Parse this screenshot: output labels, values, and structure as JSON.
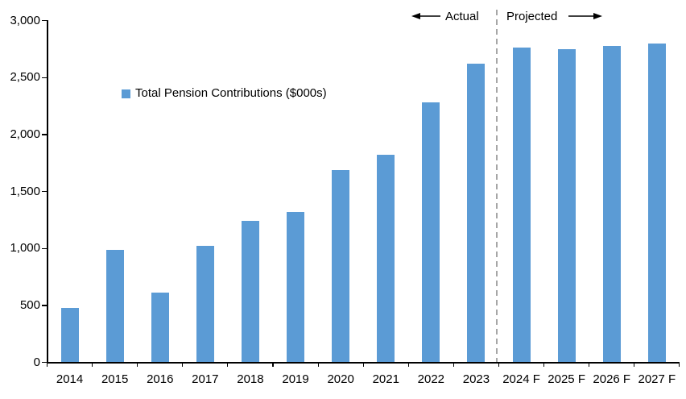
{
  "chart_data": {
    "type": "bar",
    "title": "",
    "legend_label": "Total Pension Contributions ($000s)",
    "categories": [
      "2014",
      "2015",
      "2016",
      "2017",
      "2018",
      "2019",
      "2020",
      "2021",
      "2022",
      "2023",
      "2024 F",
      "2025 F",
      "2026 F",
      "2027 F"
    ],
    "values": [
      475,
      990,
      610,
      1020,
      1240,
      1320,
      1690,
      1820,
      2280,
      2620,
      2760,
      2750,
      2780,
      2800
    ],
    "ylim": [
      0,
      3000
    ],
    "y_ticks": [
      0,
      500,
      1000,
      1500,
      2000,
      2500,
      3000
    ],
    "y_tick_labels": [
      "0",
      "500",
      "1,000",
      "1,500",
      "2,000",
      "2,500",
      "3,000"
    ],
    "grid": false,
    "legend_position": "inside-upper-left",
    "divider_after_category": "2023",
    "annotations": {
      "actual": "Actual",
      "projected": "Projected"
    },
    "colors": {
      "bar": "#5B9BD5",
      "divider": "#A6A6A6",
      "axis": "#000000",
      "text": "#000000"
    }
  }
}
